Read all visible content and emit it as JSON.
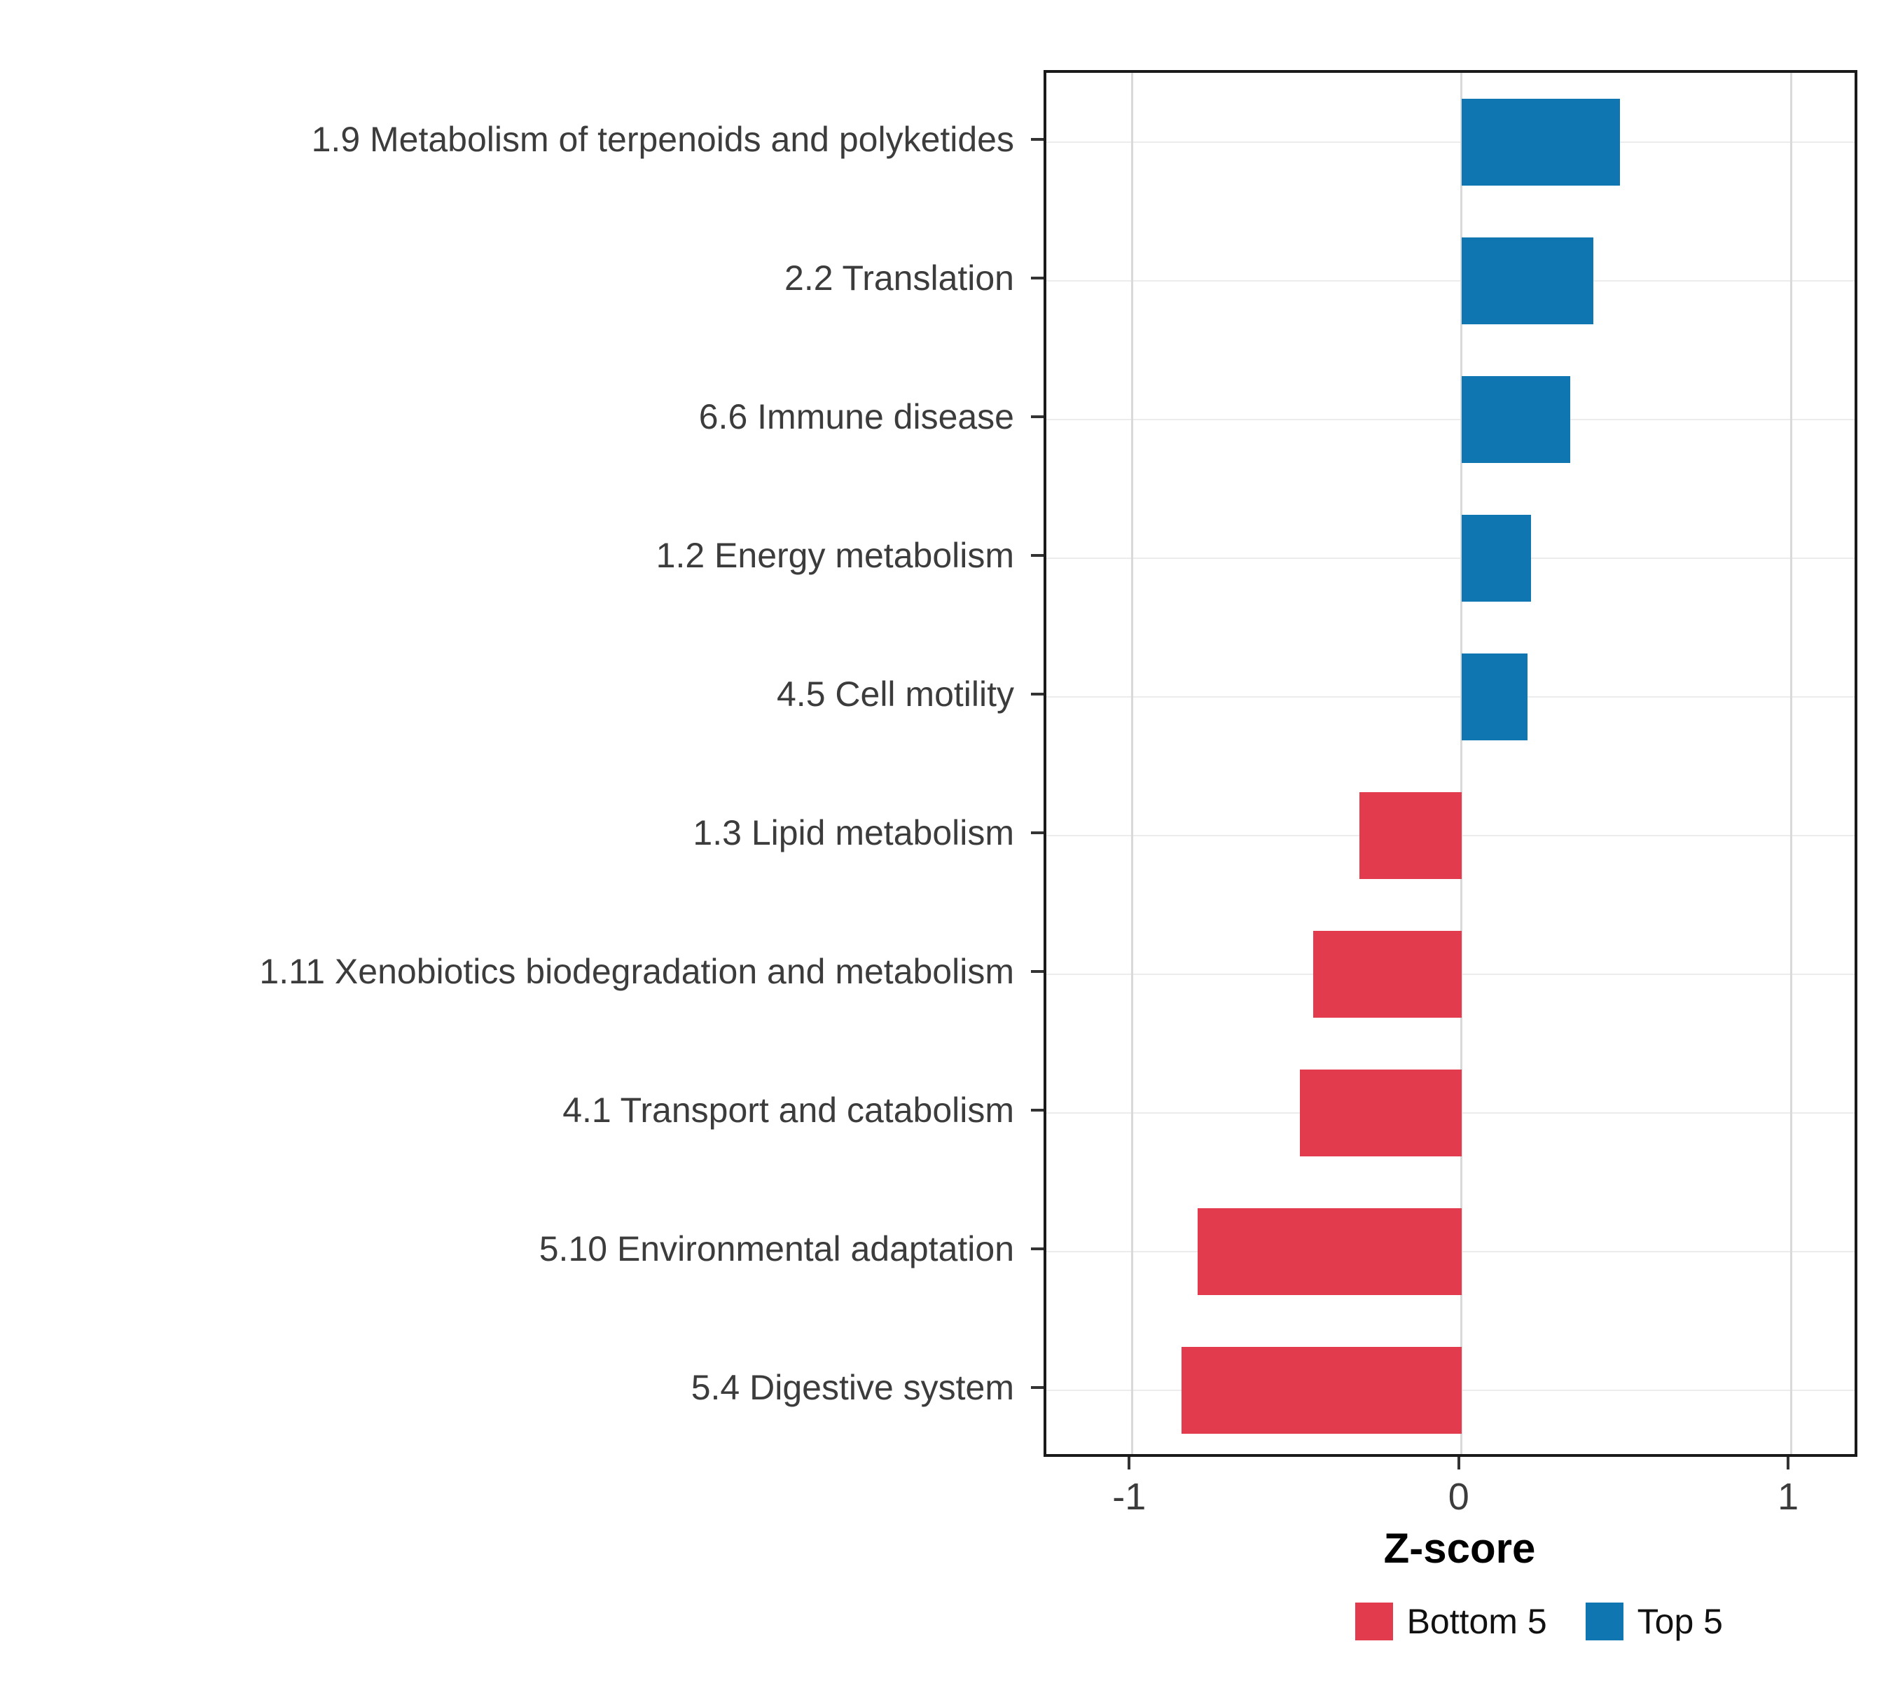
{
  "chart_data": {
    "type": "bar",
    "orientation": "horizontal",
    "title": "",
    "xlabel": "Z-score",
    "ylabel": "",
    "xlim": [
      -1.26,
      1.21
    ],
    "xticks": [
      -1,
      0,
      1
    ],
    "grid": true,
    "legend_position": "bottom-right",
    "categories": [
      "1.9 Metabolism of terpenoids and polyketides",
      "2.2 Translation",
      "6.6 Immune disease",
      "1.2 Energy metabolism",
      "4.5 Cell motility",
      "1.3 Lipid metabolism",
      "1.11 Xenobiotics biodegradation and metabolism",
      "4.1 Transport and catabolism",
      "5.10 Environmental adaptation",
      "5.4 Digestive system"
    ],
    "series": [
      {
        "name": "Z-score",
        "values": [
          0.48,
          0.4,
          0.33,
          0.21,
          0.2,
          -0.31,
          -0.45,
          -0.49,
          -0.8,
          -0.85
        ]
      }
    ],
    "groups": [
      "Top 5",
      "Top 5",
      "Top 5",
      "Top 5",
      "Top 5",
      "Bottom 5",
      "Bottom 5",
      "Bottom 5",
      "Bottom 5",
      "Bottom 5"
    ],
    "colors": {
      "Top 5": "#0F76B2",
      "Bottom 5": "#E23B4E"
    },
    "panel_border_color": "#1a1a1a",
    "grid_color": "#d9d9d9",
    "legend": [
      {
        "label": "Bottom 5",
        "color": "#E23B4E"
      },
      {
        "label": "Top 5",
        "color": "#0F76B2"
      }
    ]
  }
}
